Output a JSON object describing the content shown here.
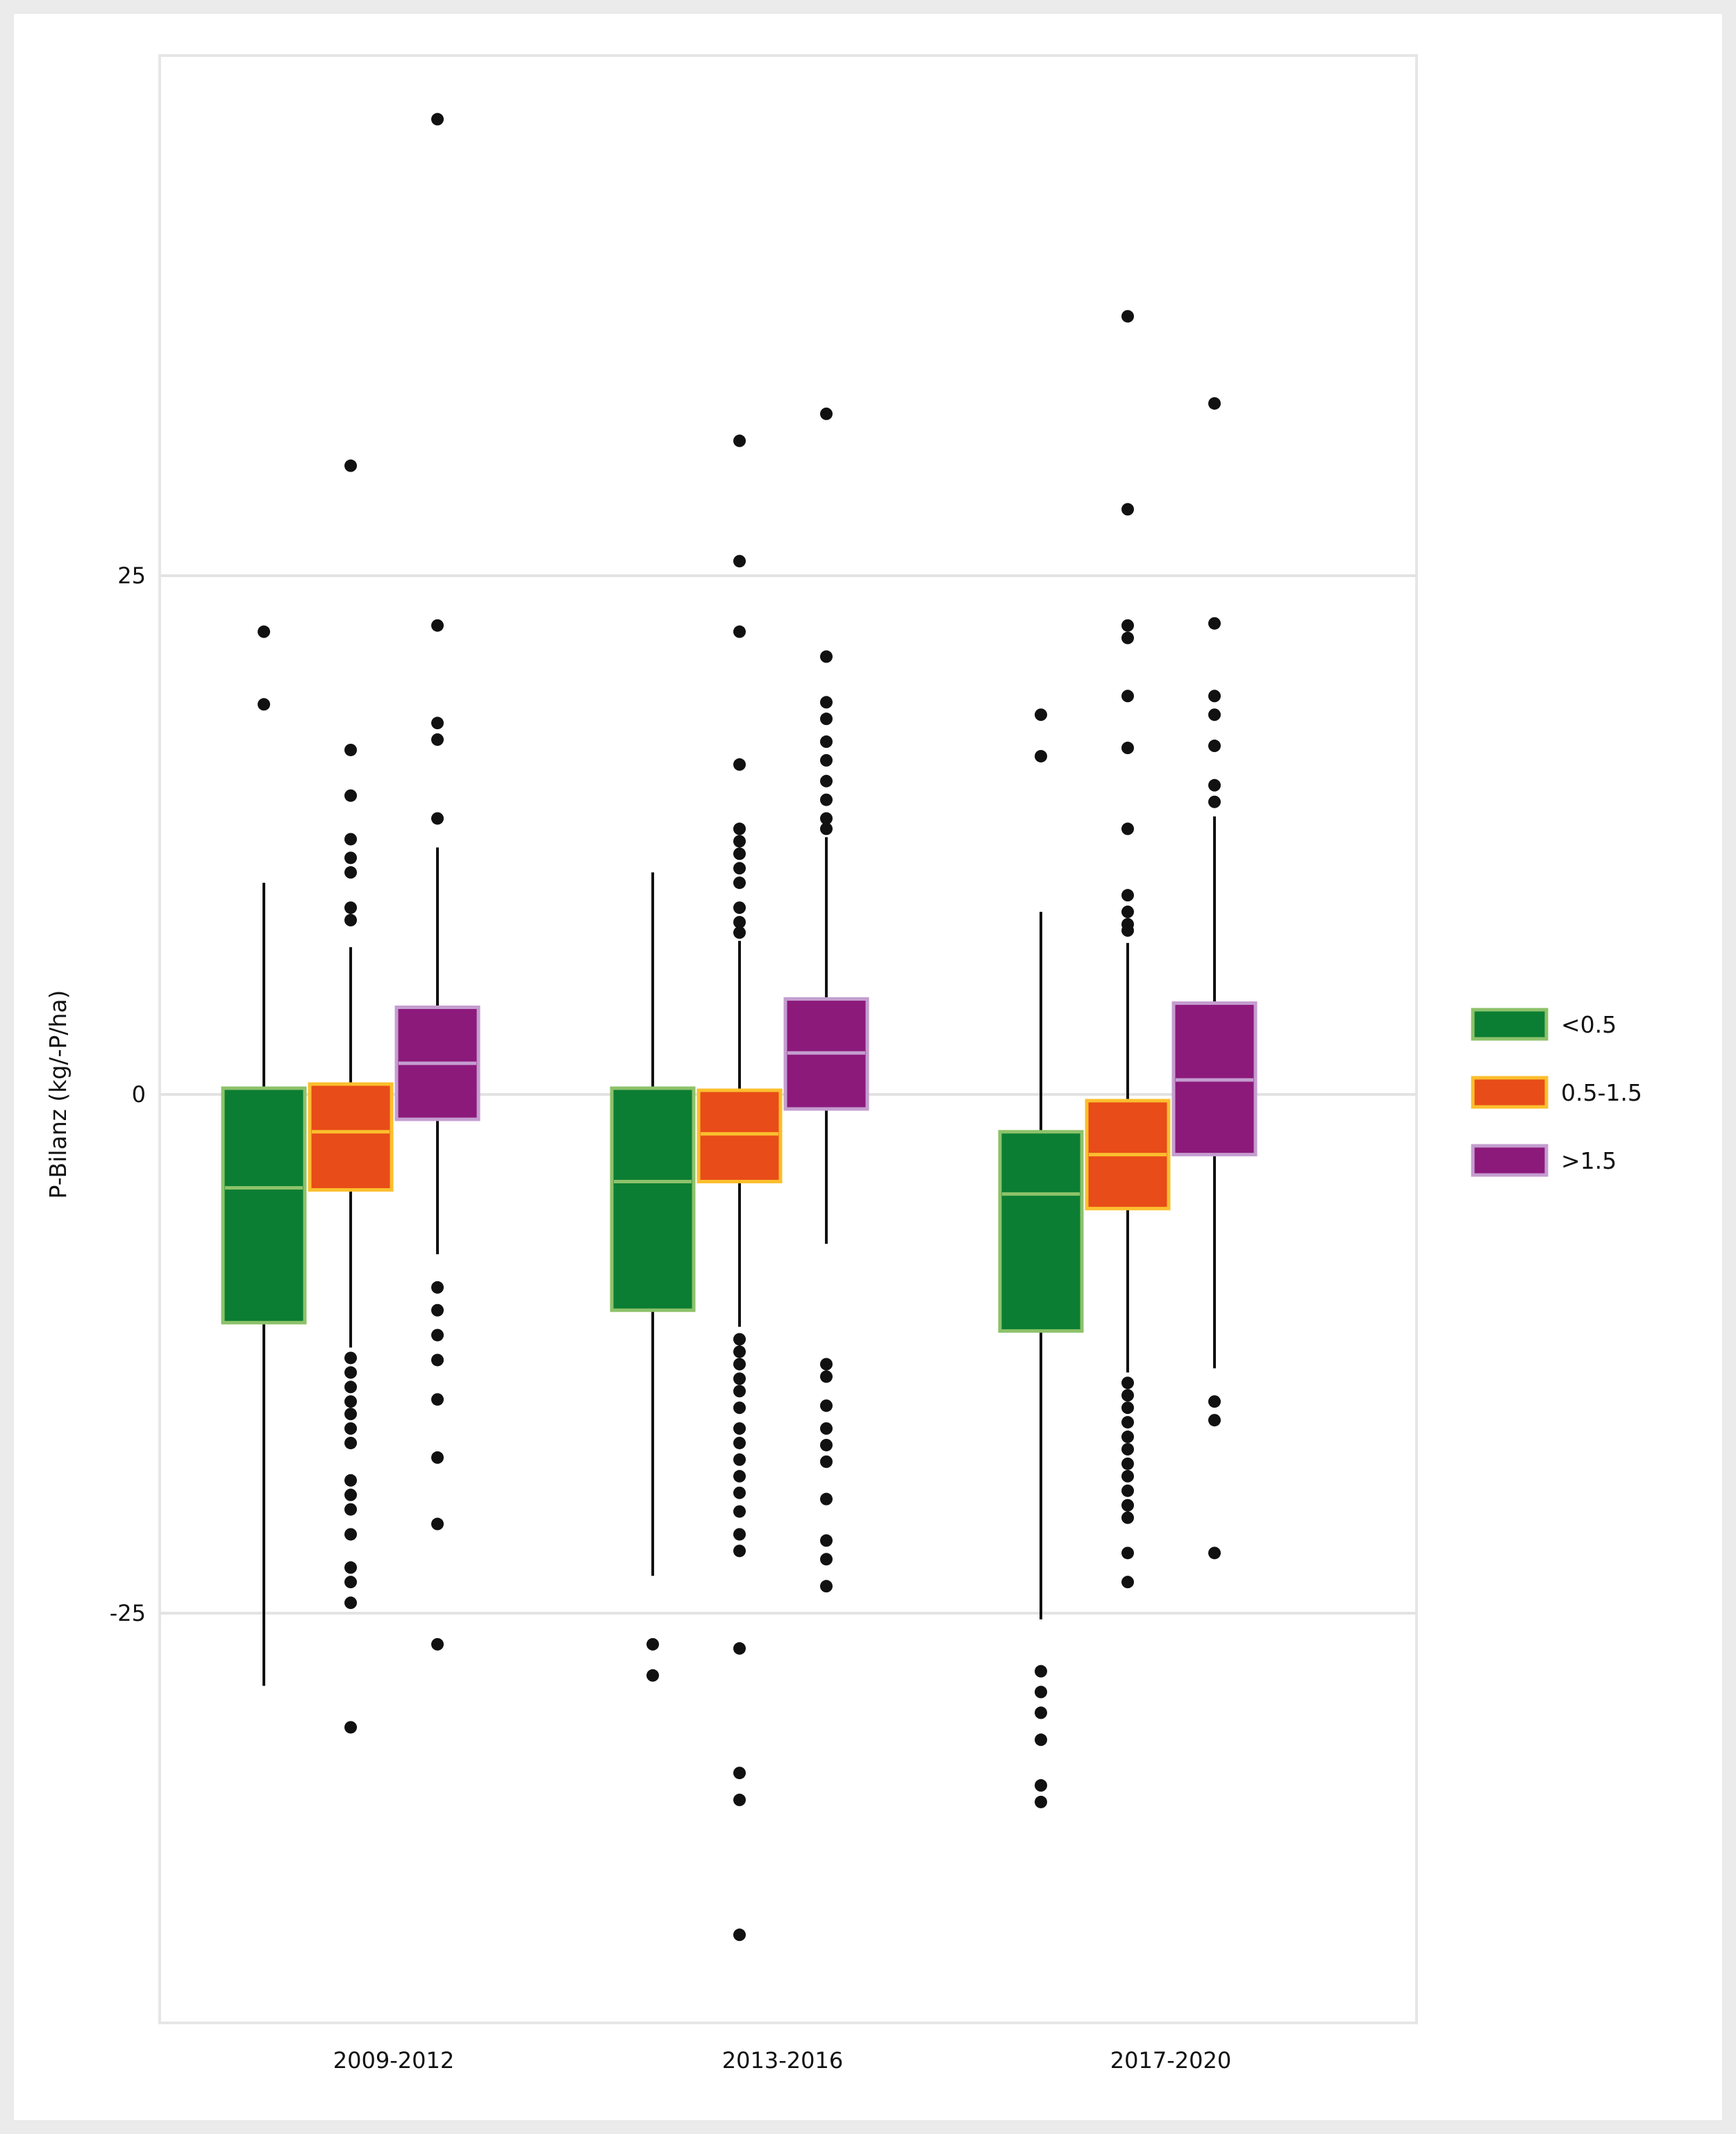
{
  "chart_data": {
    "type": "boxplot",
    "ylabel": "P-Bilanz (kg/-P/ha)",
    "xlabel": "",
    "yticks": [
      -25,
      0,
      25
    ],
    "ylim": [
      -45,
      50
    ],
    "grid": true,
    "legend_position": "right",
    "categories": [
      "2009-2012",
      "2013-2016",
      "2017-2020"
    ],
    "series": [
      {
        "name": "<0.5",
        "fill": "#0b7e33",
        "stroke": "#8dc26a",
        "boxes": [
          {
            "whisker_low": -28.5,
            "q1": -11,
            "median": -4.5,
            "q3": 0.3,
            "whisker_high": 10.2,
            "outliers": [
              22.3,
              18.8
            ]
          },
          {
            "whisker_low": -23.2,
            "q1": -10.4,
            "median": -4.2,
            "q3": 0.3,
            "whisker_high": 10.7,
            "outliers": [
              -26.5,
              -28
            ]
          },
          {
            "whisker_low": -25.3,
            "q1": -11.4,
            "median": -4.8,
            "q3": -1.8,
            "whisker_high": 8.8,
            "outliers": [
              18.3,
              16.3,
              -27.8,
              -28.8,
              -29.8,
              -31.1,
              -33.3,
              -34.1
            ]
          }
        ]
      },
      {
        "name": "0.5-1.5",
        "fill": "#e84c18",
        "stroke": "#fbbf2e",
        "boxes": [
          {
            "whisker_low": -12.2,
            "q1": -4.6,
            "median": -1.8,
            "q3": 0.5,
            "whisker_high": 7.1,
            "outliers": [
              30.3,
              16.6,
              14.4,
              12.3,
              11.4,
              10.7,
              9.0,
              8.4,
              -12.7,
              -13.4,
              -14.1,
              -14.8,
              -15.4,
              -16.1,
              -16.8,
              -18.6,
              -19.3,
              -20.0,
              -21.2,
              -22.8,
              -23.5,
              -24.5,
              -30.5
            ]
          },
          {
            "whisker_low": -11.2,
            "q1": -4.2,
            "median": -1.9,
            "q3": 0.2,
            "whisker_high": 7.4,
            "outliers": [
              31.5,
              25.7,
              22.3,
              15.9,
              12.8,
              12.2,
              11.6,
              10.9,
              10.2,
              9.0,
              8.3,
              7.8,
              -11.8,
              -12.4,
              -13.0,
              -13.7,
              -14.3,
              -15.1,
              -16.1,
              -16.8,
              -17.6,
              -18.4,
              -19.2,
              -20.1,
              -21.2,
              -22.0,
              -26.7,
              -32.7,
              -34.0,
              -40.5
            ]
          },
          {
            "whisker_low": -13.4,
            "q1": -5.5,
            "median": -2.9,
            "q3": -0.3,
            "whisker_high": 7.3,
            "outliers": [
              37.5,
              28.2,
              22.6,
              22.0,
              19.2,
              16.7,
              12.8,
              9.6,
              8.8,
              8.2,
              7.9,
              -13.9,
              -14.5,
              -15.1,
              -15.8,
              -16.5,
              -17.1,
              -17.8,
              -18.4,
              -19.1,
              -19.8,
              -20.4,
              -22.1,
              -23.5
            ]
          }
        ]
      },
      {
        "name": ">1.5",
        "fill": "#8c1a7b",
        "stroke": "#c49ecf",
        "boxes": [
          {
            "whisker_low": -7.7,
            "q1": -1.2,
            "median": 1.5,
            "q3": 4.2,
            "whisker_high": 11.9,
            "outliers": [
              47,
              22.6,
              17.9,
              17.1,
              13.3,
              -9.3,
              -10.4,
              -11.6,
              -12.8,
              -14.7,
              -17.5,
              -20.7,
              -26.5
            ]
          },
          {
            "whisker_low": -7.2,
            "q1": -0.7,
            "median": 2.0,
            "q3": 4.6,
            "whisker_high": 12.4,
            "outliers": [
              32.8,
              21.1,
              18.9,
              18.1,
              17.0,
              16.1,
              15.1,
              14.2,
              13.3,
              12.8,
              -13.0,
              -13.6,
              -15.0,
              -16.1,
              -16.9,
              -17.7,
              -19.5,
              -21.5,
              -22.4,
              -23.7
            ]
          },
          {
            "whisker_low": -13.2,
            "q1": -2.9,
            "median": 0.7,
            "q3": 4.4,
            "whisker_high": 13.4,
            "outliers": [
              33.3,
              22.7,
              19.2,
              18.3,
              16.8,
              14.9,
              14.1,
              -14.8,
              -15.7,
              -22.1
            ]
          }
        ]
      }
    ]
  }
}
